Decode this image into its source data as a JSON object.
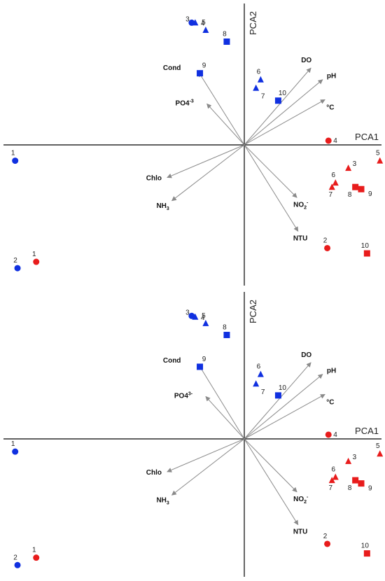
{
  "chart_data": [
    {
      "type": "scatter",
      "xlabel": "PCA1",
      "ylabel": "PCA2",
      "xlim": [
        -10,
        6
      ],
      "ylim": [
        -6.6,
        6.8
      ],
      "colors": {
        "blue": "#1030e0",
        "red": "#e81c1c",
        "arrow": "#8a8a8a",
        "axis": "#000000"
      },
      "loadings": [
        {
          "label": "DO",
          "x": 2.85,
          "y": 3.65
        },
        {
          "label": "pH",
          "x": 3.35,
          "y": 3.1
        },
        {
          "label": "°C",
          "x": 3.45,
          "y": 2.15
        },
        {
          "label": "Cond",
          "x": -1.95,
          "y": 3.45
        },
        {
          "label": "PO4",
          "sup": "-3",
          "x": -1.6,
          "y": 1.95
        },
        {
          "label": "Chlo",
          "x": -3.3,
          "y": -1.55
        },
        {
          "label": "NH",
          "sub": "3",
          "x": -3.1,
          "y": -2.65
        },
        {
          "label": "NO",
          "sub": "2",
          "sup": "-",
          "x": 2.25,
          "y": -2.5
        },
        {
          "label": "NTU",
          "x": 2.3,
          "y": -4.1
        }
      ],
      "points": [
        {
          "label": "3",
          "x": -2.25,
          "y": 5.8,
          "shape": "circle",
          "color": "blue"
        },
        {
          "label": "4",
          "x": -2.1,
          "y": 5.8,
          "shape": "triangle",
          "color": "blue"
        },
        {
          "label": "5",
          "x": -1.65,
          "y": 5.45,
          "shape": "triangle",
          "color": "blue"
        },
        {
          "label": "8",
          "x": -0.75,
          "y": 4.9,
          "shape": "square",
          "color": "blue"
        },
        {
          "label": "9",
          "x": -1.9,
          "y": 3.4,
          "shape": "square",
          "color": "blue"
        },
        {
          "label": "6",
          "x": 0.7,
          "y": 3.1,
          "shape": "triangle",
          "color": "blue"
        },
        {
          "label": "7",
          "x": 0.5,
          "y": 2.7,
          "shape": "triangle",
          "color": "blue"
        },
        {
          "label": "10",
          "x": 1.45,
          "y": 2.1,
          "shape": "square",
          "color": "blue"
        },
        {
          "label": "1",
          "x": -9.8,
          "y": -0.75,
          "shape": "circle",
          "color": "blue"
        },
        {
          "label": "2",
          "x": -9.7,
          "y": -5.85,
          "shape": "circle",
          "color": "blue"
        },
        {
          "label": "1",
          "x": -8.9,
          "y": -5.55,
          "shape": "circle",
          "color": "red"
        },
        {
          "label": "4",
          "x": 3.6,
          "y": 0.2,
          "shape": "circle",
          "color": "red"
        },
        {
          "label": "5",
          "x": 5.8,
          "y": -0.75,
          "shape": "triangle",
          "color": "red"
        },
        {
          "label": "3",
          "x": 4.45,
          "y": -1.1,
          "shape": "triangle",
          "color": "red"
        },
        {
          "label": "6",
          "x": 3.9,
          "y": -1.8,
          "shape": "triangle",
          "color": "red"
        },
        {
          "label": "7",
          "x": 3.75,
          "y": -2.0,
          "shape": "triangle",
          "color": "red"
        },
        {
          "label": "8",
          "x": 4.75,
          "y": -2.0,
          "shape": "square",
          "color": "red"
        },
        {
          "label": "9",
          "x": 5.0,
          "y": -2.1,
          "shape": "square",
          "color": "red"
        },
        {
          "label": "2",
          "x": 3.55,
          "y": -4.9,
          "shape": "circle",
          "color": "red"
        },
        {
          "label": "10",
          "x": 5.25,
          "y": -5.15,
          "shape": "square",
          "color": "red"
        }
      ]
    },
    {
      "type": "scatter",
      "xlabel": "PCA1",
      "ylabel": "PCA2",
      "xlim": [
        -10,
        6
      ],
      "ylim": [
        -6.6,
        6.8
      ],
      "colors": {
        "blue": "#1030e0",
        "red": "#e81c1c",
        "arrow": "#8a8a8a",
        "axis": "#000000"
      },
      "loadings": [
        {
          "label": "DO",
          "x": 2.85,
          "y": 3.6
        },
        {
          "label": "pH",
          "x": 3.35,
          "y": 3.05
        },
        {
          "label": "°C",
          "x": 3.45,
          "y": 2.1
        },
        {
          "label": "Cond",
          "x": -1.95,
          "y": 3.5
        },
        {
          "label": "PO4",
          "sup": "3-",
          "x": -1.65,
          "y": 2.0
        },
        {
          "label": "Chlo",
          "x": -3.3,
          "y": -1.55
        },
        {
          "label": "NH",
          "sub": "3",
          "x": -3.1,
          "y": -2.65
        },
        {
          "label": "NO",
          "sub": "2",
          "sup": "-",
          "x": 2.25,
          "y": -2.5
        },
        {
          "label": "NTU",
          "x": 2.3,
          "y": -4.05
        }
      ],
      "points": [
        {
          "label": "3",
          "x": -2.25,
          "y": 5.8,
          "shape": "circle",
          "color": "blue"
        },
        {
          "label": "4",
          "x": -2.1,
          "y": 5.75,
          "shape": "triangle",
          "color": "blue"
        },
        {
          "label": "5",
          "x": -1.65,
          "y": 5.45,
          "shape": "triangle",
          "color": "blue"
        },
        {
          "label": "8",
          "x": -0.75,
          "y": 4.9,
          "shape": "square",
          "color": "blue"
        },
        {
          "label": "9",
          "x": -1.9,
          "y": 3.4,
          "shape": "square",
          "color": "blue"
        },
        {
          "label": "6",
          "x": 0.7,
          "y": 3.05,
          "shape": "triangle",
          "color": "blue"
        },
        {
          "label": "7",
          "x": 0.5,
          "y": 2.6,
          "shape": "triangle",
          "color": "blue"
        },
        {
          "label": "10",
          "x": 1.45,
          "y": 2.05,
          "shape": "square",
          "color": "blue"
        },
        {
          "label": "1",
          "x": -9.8,
          "y": -0.6,
          "shape": "circle",
          "color": "blue"
        },
        {
          "label": "2",
          "x": -9.7,
          "y": -5.95,
          "shape": "circle",
          "color": "blue"
        },
        {
          "label": "1",
          "x": -8.9,
          "y": -5.6,
          "shape": "circle",
          "color": "red"
        },
        {
          "label": "4",
          "x": 3.6,
          "y": 0.2,
          "shape": "circle",
          "color": "red"
        },
        {
          "label": "5",
          "x": 5.8,
          "y": -0.7,
          "shape": "triangle",
          "color": "red"
        },
        {
          "label": "3",
          "x": 4.45,
          "y": -1.05,
          "shape": "triangle",
          "color": "red"
        },
        {
          "label": "6",
          "x": 3.9,
          "y": -1.8,
          "shape": "triangle",
          "color": "red"
        },
        {
          "label": "7",
          "x": 3.75,
          "y": -1.95,
          "shape": "triangle",
          "color": "red"
        },
        {
          "label": "8",
          "x": 4.75,
          "y": -1.95,
          "shape": "square",
          "color": "red"
        },
        {
          "label": "9",
          "x": 5.0,
          "y": -2.1,
          "shape": "square",
          "color": "red"
        },
        {
          "label": "2",
          "x": 3.55,
          "y": -4.95,
          "shape": "circle",
          "color": "red"
        },
        {
          "label": "10",
          "x": 5.25,
          "y": -5.4,
          "shape": "square",
          "color": "red"
        }
      ]
    }
  ]
}
